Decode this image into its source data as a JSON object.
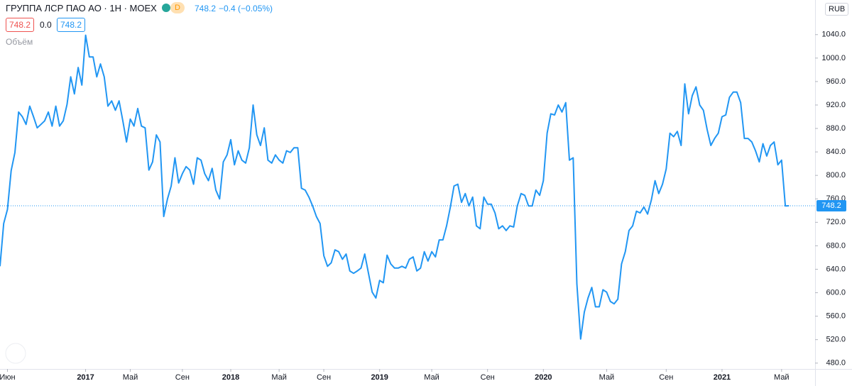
{
  "header": {
    "badge": "D",
    "quote": "748.2",
    "change": "−0.4 (−0.05%)",
    "open_box": "748.2",
    "mid_value": "0.0",
    "close_box": "748.2",
    "volume_label": "Объём",
    "currency": "RUB"
  },
  "chart_data": {
    "type": "line",
    "title": "ГРУППА ЛСР ПАО АО · 1Н · MOEX",
    "color": "#2196f3",
    "values": [
      645,
      718,
      742,
      808,
      839,
      908,
      900,
      887,
      918,
      900,
      881,
      887,
      893,
      908,
      884,
      918,
      884,
      893,
      921,
      968,
      939,
      984,
      954,
      1039,
      1002,
      1002,
      968,
      990,
      968,
      918,
      927,
      911,
      927,
      893,
      857,
      896,
      884,
      914,
      884,
      881,
      809,
      823,
      869,
      857,
      730,
      760,
      782,
      830,
      787,
      803,
      815,
      809,
      785,
      830,
      826,
      803,
      791,
      812,
      775,
      760,
      823,
      835,
      861,
      818,
      842,
      826,
      821,
      847,
      920,
      869,
      851,
      881,
      826,
      821,
      835,
      826,
      821,
      842,
      839,
      847,
      847,
      778,
      775,
      763,
      748,
      730,
      718,
      663,
      645,
      651,
      673,
      670,
      657,
      666,
      637,
      633,
      637,
      642,
      666,
      633,
      601,
      591,
      621,
      617,
      664,
      649,
      642,
      642,
      645,
      642,
      657,
      661,
      637,
      642,
      670,
      654,
      670,
      661,
      690,
      690,
      714,
      746,
      782,
      785,
      754,
      769,
      748,
      763,
      714,
      709,
      763,
      751,
      751,
      736,
      709,
      714,
      706,
      714,
      712,
      748,
      769,
      766,
      748,
      748,
      775,
      766,
      791,
      872,
      905,
      903,
      920,
      908,
      924,
      826,
      830,
      615,
      521,
      567,
      591,
      609,
      576,
      576,
      605,
      601,
      585,
      581,
      589,
      649,
      670,
      706,
      714,
      739,
      736,
      746,
      734,
      758,
      791,
      769,
      785,
      811,
      872,
      866,
      875,
      851,
      956,
      905,
      936,
      951,
      920,
      911,
      878,
      851,
      863,
      872,
      900,
      903,
      933,
      942,
      942,
      924,
      863,
      863,
      857,
      842,
      823,
      854,
      833,
      851,
      857,
      818,
      826,
      748,
      748.2
    ],
    "last_price": 748.2,
    "xlim": [
      0,
      219
    ],
    "ylim": [
      470,
      1099
    ],
    "xticks": [
      {
        "value": 2,
        "label": "Июн"
      },
      {
        "value": 23,
        "label": "2017"
      },
      {
        "value": 35,
        "label": "Май"
      },
      {
        "value": 49,
        "label": "Сен"
      },
      {
        "value": 62,
        "label": "2018"
      },
      {
        "value": 75,
        "label": "Май"
      },
      {
        "value": 87,
        "label": "Сен"
      },
      {
        "value": 102,
        "label": "2019"
      },
      {
        "value": 116,
        "label": "Май"
      },
      {
        "value": 131,
        "label": "Сен"
      },
      {
        "value": 146,
        "label": "2020"
      },
      {
        "value": 163,
        "label": "Май"
      },
      {
        "value": 179,
        "label": "Сен"
      },
      {
        "value": 194,
        "label": "2021"
      },
      {
        "value": 210,
        "label": "Май"
      }
    ],
    "yticks": [
      {
        "value": 480,
        "label": "480.0"
      },
      {
        "value": 520,
        "label": "520.0"
      },
      {
        "value": 560,
        "label": "560.0"
      },
      {
        "value": 600,
        "label": "600.0"
      },
      {
        "value": 640,
        "label": "640.0"
      },
      {
        "value": 680,
        "label": "680.0"
      },
      {
        "value": 720,
        "label": "720.0"
      },
      {
        "value": 760,
        "label": "760.0"
      },
      {
        "value": 800,
        "label": "800.0"
      },
      {
        "value": 840,
        "label": "840.0"
      },
      {
        "value": 880,
        "label": "880.0"
      },
      {
        "value": 920,
        "label": "920.0"
      },
      {
        "value": 960,
        "label": "960.0"
      },
      {
        "value": 1000,
        "label": "1000.0"
      },
      {
        "value": 1040,
        "label": "1040.0"
      }
    ]
  }
}
